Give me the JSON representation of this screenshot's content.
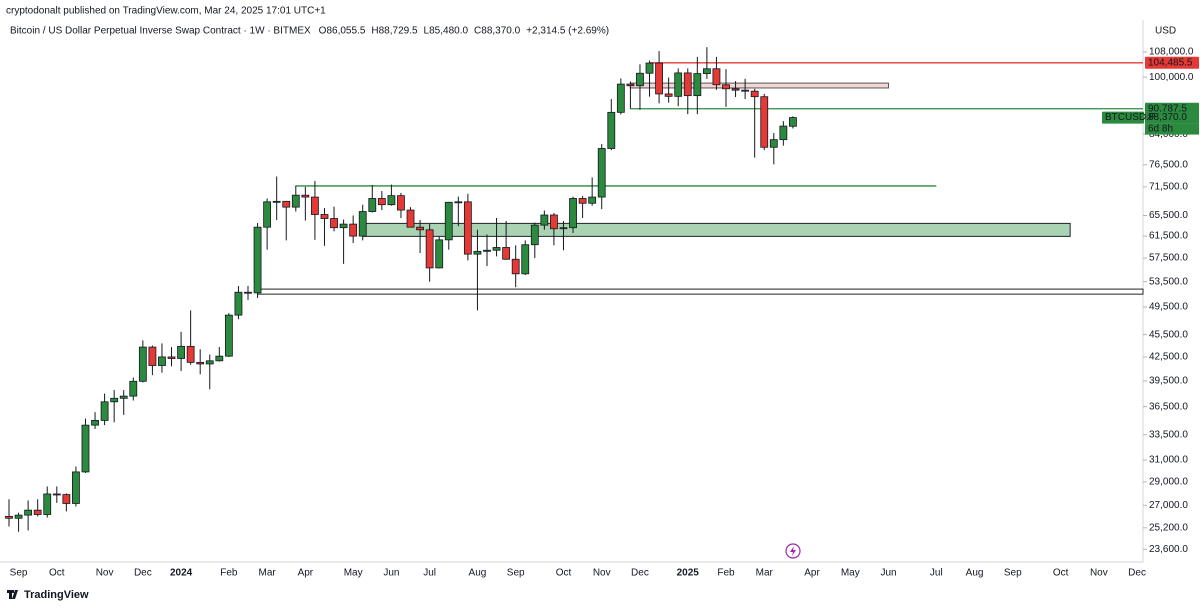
{
  "page_header": "cryptodonalt published on TradingView.com, Mar 24, 2025 17:01 UTC+1",
  "footer": "TradingView",
  "chart_data": {
    "type": "candlestick",
    "title": "Bitcoin / US Dollar Perpetual Inverse Swap Contract · 1W · BITMEX",
    "ohlc_labels": [
      "O86,055.5",
      "H88,729.5",
      "L85,480.0",
      "C88,370.0"
    ],
    "change_label": "+2,314.5 (+2.69%)",
    "currency": "USD",
    "symbol_tag": "BTCUSD.P",
    "countdown": "6d 8h",
    "last_price_label": "88,370.0",
    "up_color": "#2b8a3e",
    "down_color": "#e53935",
    "log_scale": true,
    "grid": false,
    "ylim": [
      22700,
      119100
    ],
    "yticks": [
      {
        "value": 108000,
        "label": "108,000.0"
      },
      {
        "value": 100000,
        "label": "100,000.0"
      },
      {
        "value": 84000,
        "label": "84,000.0"
      },
      {
        "value": 76500,
        "label": "76,500.0"
      },
      {
        "value": 71500,
        "label": "71,500.0"
      },
      {
        "value": 65500,
        "label": "65,500.0"
      },
      {
        "value": 61500,
        "label": "61,500.0"
      },
      {
        "value": 57500,
        "label": "57,500.0"
      },
      {
        "value": 53500,
        "label": "53,500.0"
      },
      {
        "value": 49500,
        "label": "49,500.0"
      },
      {
        "value": 45500,
        "label": "45,500.0"
      },
      {
        "value": 42500,
        "label": "42,500.0"
      },
      {
        "value": 39500,
        "label": "39,500.0"
      },
      {
        "value": 36500,
        "label": "36,500.0"
      },
      {
        "value": 33500,
        "label": "33,500.0"
      },
      {
        "value": 31000,
        "label": "31,000.0"
      },
      {
        "value": 29000,
        "label": "29,000.0"
      },
      {
        "value": 27000,
        "label": "27,000.0"
      },
      {
        "value": 25200,
        "label": "25,200.0"
      },
      {
        "value": 23600,
        "label": "23,600.0"
      }
    ],
    "categories": [
      null,
      "Sep",
      null,
      null,
      null,
      "Oct",
      null,
      null,
      null,
      null,
      "Nov",
      null,
      null,
      null,
      "Dec",
      null,
      null,
      null,
      "2024",
      null,
      null,
      null,
      null,
      "Feb",
      null,
      null,
      null,
      "Mar",
      null,
      null,
      null,
      "Apr",
      null,
      null,
      null,
      null,
      "May",
      null,
      null,
      null,
      "Jun",
      null,
      null,
      null,
      "Jul",
      null,
      null,
      null,
      null,
      "Aug",
      null,
      null,
      null,
      "Sep",
      null,
      null,
      null,
      null,
      "Oct",
      null,
      null,
      null,
      "Nov",
      null,
      null,
      null,
      "Dec",
      null,
      null,
      null,
      null,
      "2025",
      null,
      null,
      null,
      "Feb",
      null,
      null,
      null,
      "Mar",
      null,
      null,
      null,
      null,
      "Apr",
      null,
      null,
      null,
      "May",
      null,
      null,
      null,
      "Jun",
      null,
      null,
      null,
      null,
      "Jul",
      null,
      null,
      null,
      "Aug",
      null,
      null,
      null,
      "Sep",
      null,
      null,
      null,
      null,
      "Oct",
      null,
      null,
      null,
      "Nov",
      null,
      null,
      null,
      "Dec"
    ],
    "open": [
      26100,
      25950,
      26200,
      26600,
      26250,
      27950,
      27900,
      27150,
      29900,
      34500,
      35000,
      37050,
      37450,
      37700,
      39450,
      43800,
      41400,
      42500,
      42300,
      43900,
      41800,
      41600,
      42000,
      42600,
      48300,
      51800,
      51700,
      63200,
      68300,
      68400,
      67200,
      69700,
      69300,
      65700,
      64900,
      63100,
      63800,
      61500,
      66300,
      69000,
      67700,
      69600,
      66600,
      63200,
      62700,
      55800,
      60800,
      68200,
      68300,
      58200,
      58700,
      58900,
      59400,
      57300,
      54800,
      59900,
      63600,
      65600,
      62900,
      63100,
      69000,
      68000,
      69300,
      80400,
      89800,
      97900,
      97400,
      101200,
      104400,
      95000,
      94300,
      101300,
      94500,
      101100,
      102600,
      97700,
      96500,
      96100,
      95800,
      94200,
      80700,
      82600,
      86055.5,
      null,
      null,
      null,
      null,
      null,
      null,
      null,
      null,
      null,
      null,
      null,
      null,
      null,
      null,
      null,
      null,
      null,
      null,
      null,
      null,
      null,
      null,
      null,
      null,
      null,
      null,
      null,
      null,
      null,
      null,
      null,
      null,
      null,
      null,
      null,
      null
    ],
    "high": [
      27500,
      26400,
      27400,
      27500,
      28600,
      28600,
      28000,
      30400,
      35200,
      35900,
      38000,
      38400,
      38400,
      39900,
      44700,
      44000,
      44300,
      43800,
      45900,
      49000,
      43500,
      42800,
      43800,
      48600,
      52800,
      52800,
      64000,
      69000,
      73800,
      68500,
      71800,
      71500,
      72800,
      67000,
      67300,
      64700,
      65500,
      67700,
      71900,
      70600,
      72000,
      70200,
      67200,
      64600,
      63800,
      61400,
      68300,
      69400,
      70000,
      62700,
      61800,
      65000,
      64400,
      59800,
      60700,
      64100,
      66500,
      66000,
      64400,
      69400,
      69500,
      73600,
      81500,
      93500,
      99600,
      98700,
      104000,
      105200,
      108300,
      99900,
      102700,
      102700,
      106400,
      109600,
      106400,
      102500,
      98800,
      99500,
      96500,
      95000,
      84300,
      87400,
      88729.5,
      null,
      null,
      null,
      null,
      null,
      null,
      null,
      null,
      null,
      null,
      null,
      null,
      null,
      null,
      null,
      null,
      null,
      null,
      null,
      null,
      null,
      null,
      null,
      null,
      null,
      null,
      null,
      null,
      null,
      null,
      null,
      null,
      null,
      null,
      null,
      null
    ],
    "low": [
      25300,
      24900,
      25000,
      26100,
      26000,
      27200,
      26500,
      26900,
      29800,
      34100,
      34500,
      34800,
      35600,
      37200,
      39300,
      40200,
      40500,
      41300,
      40700,
      41500,
      40300,
      38500,
      41900,
      42500,
      47700,
      50600,
      50900,
      59000,
      64600,
      60700,
      66300,
      64500,
      60800,
      59700,
      62400,
      56500,
      60200,
      60700,
      66100,
      66600,
      67500,
      65000,
      63400,
      58400,
      53500,
      55700,
      59000,
      63400,
      57100,
      49000,
      56100,
      57800,
      57200,
      52600,
      54600,
      57500,
      62700,
      59800,
      58900,
      62100,
      65000,
      67500,
      66800,
      80000,
      89200,
      90800,
      90500,
      94200,
      92300,
      92500,
      91500,
      89300,
      89300,
      99500,
      96200,
      91300,
      94100,
      93500,
      78200,
      80000,
      76600,
      81100,
      85480,
      null,
      null,
      null,
      null,
      null,
      null,
      null,
      null,
      null,
      null,
      null,
      null,
      null,
      null,
      null,
      null,
      null,
      null,
      null,
      null,
      null,
      null,
      null,
      null,
      null,
      null,
      null,
      null,
      null,
      null,
      null,
      null,
      null,
      null,
      null,
      null
    ],
    "close": [
      25950,
      26200,
      26600,
      26250,
      27950,
      27900,
      27150,
      29900,
      34500,
      35000,
      37050,
      37450,
      37700,
      39450,
      43800,
      41400,
      42500,
      42300,
      43900,
      41800,
      41600,
      42000,
      42600,
      48300,
      51800,
      51700,
      63200,
      68300,
      68400,
      67200,
      69700,
      69300,
      65700,
      64900,
      63100,
      63800,
      61500,
      66300,
      69000,
      67700,
      69600,
      66600,
      63200,
      62700,
      55800,
      60800,
      68200,
      68300,
      58200,
      58700,
      58900,
      59400,
      57300,
      54800,
      59900,
      63600,
      65600,
      62900,
      63100,
      69000,
      68000,
      69300,
      80400,
      89800,
      97900,
      97400,
      101200,
      104400,
      95000,
      94300,
      101300,
      94500,
      101100,
      102600,
      97700,
      96500,
      96100,
      95800,
      94200,
      80700,
      82600,
      86100,
      88370,
      null,
      null,
      null,
      null,
      null,
      null,
      null,
      null,
      null,
      null,
      null,
      null,
      null,
      null,
      null,
      null,
      null,
      null,
      null,
      null,
      null,
      null,
      null,
      null,
      null,
      null,
      null,
      null,
      null,
      null,
      null,
      null,
      null,
      null,
      null,
      null
    ],
    "lines": [
      {
        "price": 104485.5,
        "label": "104,485.5",
        "color": "#e53935",
        "from": 67,
        "extend_right": true
      },
      {
        "price": 90787.5,
        "label": "90,787.5",
        "color": "#2b8a3e",
        "from": 65,
        "extend_right": true
      },
      {
        "price": 71700,
        "color": "#2b8a3e",
        "from": 30,
        "to": 97
      }
    ],
    "zones": [
      {
        "low": 96750,
        "high": 98200,
        "color": "#f3d6d6",
        "border": "#555555",
        "from": 65,
        "to": 92
      },
      {
        "low": 61450,
        "high": 63940,
        "color": "#a9d3b2",
        "border": "#222222",
        "from": 37,
        "to": 111
      },
      {
        "low": 51500,
        "high": 52300,
        "color": "#ffffff",
        "border": "#222222",
        "from": 26,
        "extend_right": true
      }
    ]
  }
}
